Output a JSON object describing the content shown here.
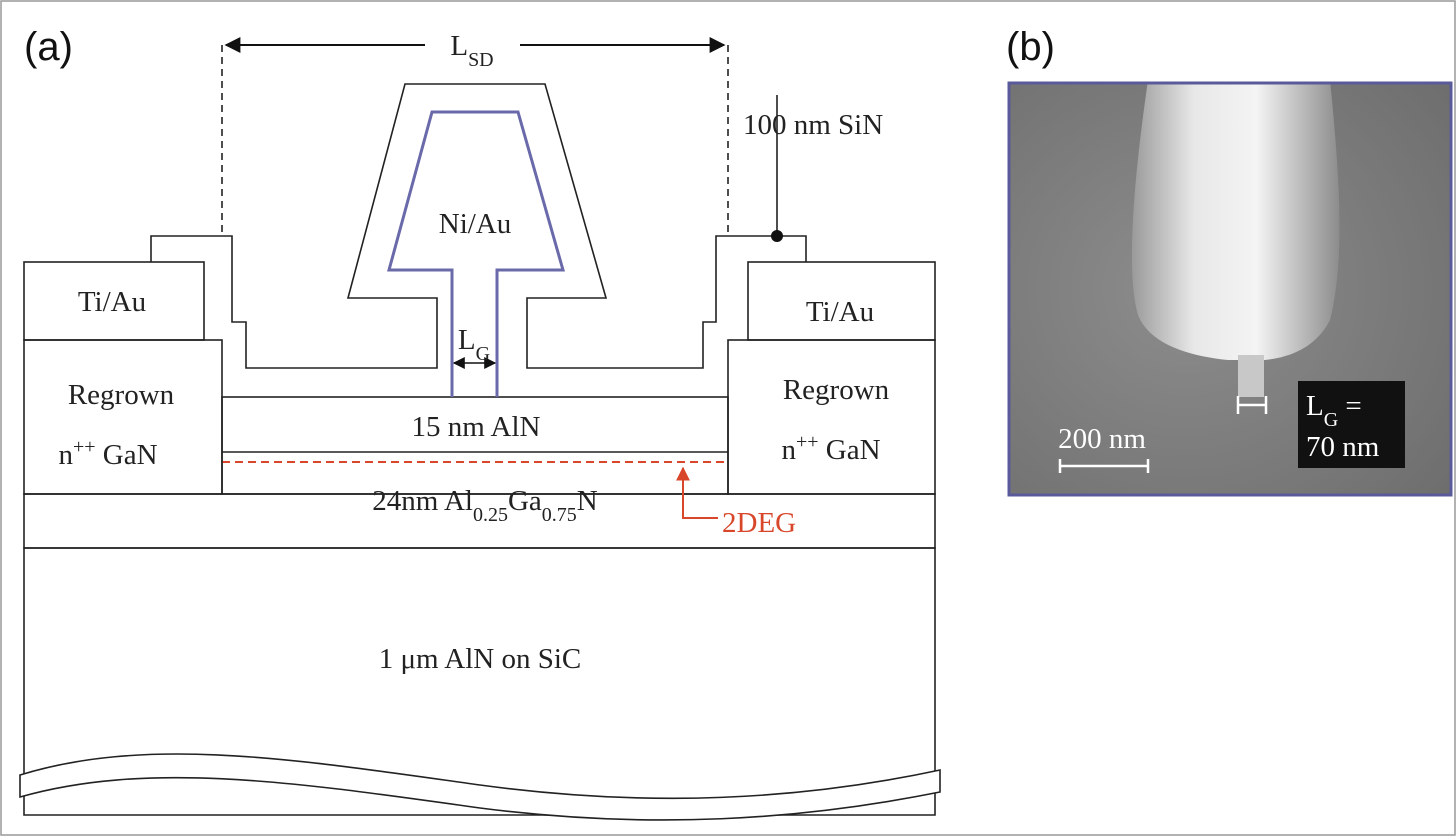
{
  "panel_a": {
    "label": "(a)",
    "l_sd": [
      "L",
      "SD"
    ],
    "sin": "100 nm SiN",
    "gate_metal": "Ni/Au",
    "l_g": [
      "L",
      "G"
    ],
    "contacts": [
      "Ti/Au",
      "Ti/Au"
    ],
    "regrown": [
      {
        "line1": "Regrown",
        "line2": [
          "n",
          "++",
          " GaN"
        ]
      },
      {
        "line1": "Regrown",
        "line2": [
          "n",
          "++",
          " GaN"
        ]
      }
    ],
    "barrier": "15 nm AlN",
    "channel": [
      "24nm Al",
      "0.25",
      "Ga",
      "0.75",
      "N"
    ],
    "two_deg": "2DEG",
    "substrate": "1 μm AlN on SiC"
  },
  "panel_b": {
    "label": "(b)",
    "scale_bar": "200 nm",
    "gate_length": {
      "line1": [
        "L",
        "G",
        " ="
      ],
      "line2": "70 nm"
    }
  }
}
